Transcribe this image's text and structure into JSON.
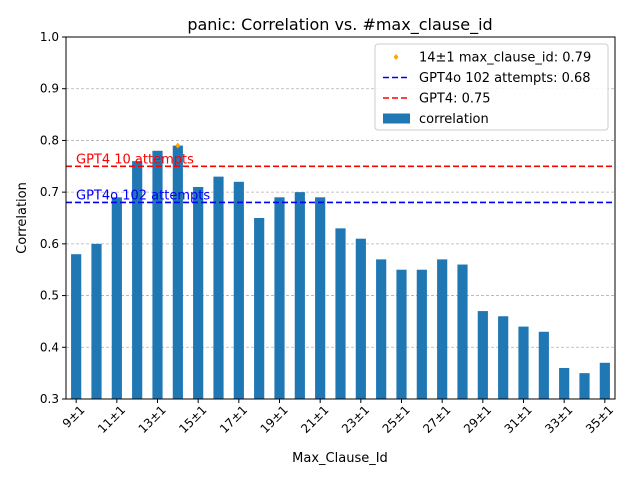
{
  "chart_data": {
    "type": "bar",
    "title": "panic: Correlation vs. #max_clause_id",
    "xlabel": "Max_Clause_Id",
    "ylabel": "Correlation",
    "ylim": [
      0.3,
      1.0
    ],
    "yticks": [
      0.3,
      0.4,
      0.5,
      0.6,
      0.7,
      0.8,
      0.9,
      1.0
    ],
    "grid": "y-dashed",
    "legend_position": "top-right",
    "categories": [
      "9±1",
      "10±1",
      "11±1",
      "12±1",
      "13±1",
      "14±1",
      "15±1",
      "16±1",
      "17±1",
      "18±1",
      "19±1",
      "20±1",
      "21±1",
      "22±1",
      "23±1",
      "24±1",
      "25±1",
      "26±1",
      "27±1",
      "28±1",
      "29±1",
      "30±1",
      "31±1",
      "32±1",
      "33±1",
      "34±1",
      "35±1"
    ],
    "tick_labels": [
      "9±1",
      "11±1",
      "13±1",
      "15±1",
      "17±1",
      "19±1",
      "21±1",
      "23±1",
      "25±1",
      "27±1",
      "29±1",
      "31±1",
      "33±1",
      "35±1"
    ],
    "series": [
      {
        "name": "correlation",
        "color": "#1f77b4",
        "values": [
          0.58,
          0.6,
          0.69,
          0.76,
          0.78,
          0.79,
          0.71,
          0.73,
          0.72,
          0.65,
          0.69,
          0.7,
          0.69,
          0.63,
          0.61,
          0.57,
          0.55,
          0.55,
          0.57,
          0.56,
          0.47,
          0.46,
          0.44,
          0.43,
          0.36,
          0.35,
          0.37
        ]
      }
    ],
    "highlight": {
      "label": "14±1 max_clause_id: 0.79",
      "category": "14±1",
      "value": 0.79,
      "color": "#ffa500"
    },
    "reference_lines": [
      {
        "label": "GPT4o 102 attempts: 0.68",
        "value": 0.68,
        "color": "#0000ff",
        "annotation": "GPT4o 102 attempts"
      },
      {
        "label": "GPT4: 0.75",
        "value": 0.75,
        "color": "#ff0000",
        "annotation": "GPT4 10 attempts"
      }
    ]
  }
}
